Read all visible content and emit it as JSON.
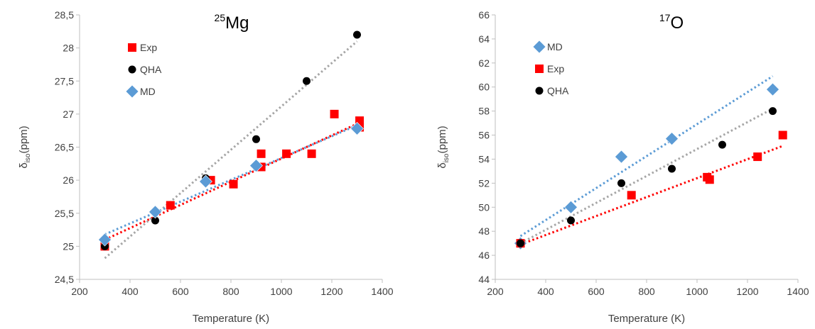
{
  "figure": {
    "panels": [
      "left",
      "right"
    ]
  },
  "chart_data": [
    {
      "type": "scatter",
      "title": {
        "sup": "25",
        "main": "Mg"
      },
      "xlabel": "Temperature (K)",
      "ylabel": {
        "main": "δ",
        "sub": "iso",
        "unit": "(ppm)"
      },
      "xlim": [
        200,
        1400
      ],
      "ylim": [
        24.5,
        28.5
      ],
      "x_ticks": [
        200,
        400,
        600,
        800,
        1000,
        1200,
        1400
      ],
      "y_ticks": [
        24.5,
        25,
        25.5,
        26,
        26.5,
        27,
        27.5,
        28,
        28.5
      ],
      "x_tick_labels": [
        "200",
        "400",
        "600",
        "800",
        "1000",
        "1200",
        "1400"
      ],
      "y_tick_labels": [
        "24,5",
        "25",
        "25,5",
        "26",
        "26,5",
        "27",
        "27,5",
        "28",
        "28,5"
      ],
      "grid": false,
      "legend_position": "top-left",
      "trendlines": "dotted linear",
      "series": [
        {
          "name": "Exp",
          "marker": "square",
          "color": "#ff0000",
          "points": [
            [
              300,
              25.0
            ],
            [
              560,
              25.62
            ],
            [
              720,
              26.0
            ],
            [
              810,
              25.94
            ],
            [
              920,
              26.4
            ],
            [
              920,
              26.2
            ],
            [
              1020,
              26.4
            ],
            [
              1120,
              26.4
            ],
            [
              1210,
              27.0
            ],
            [
              1310,
              26.9
            ],
            [
              1310,
              26.8
            ]
          ],
          "trend": [
            [
              300,
              25.1
            ],
            [
              1310,
              26.87
            ]
          ]
        },
        {
          "name": "QHA",
          "marker": "circle",
          "color": "#000000",
          "points": [
            [
              300,
              25.0
            ],
            [
              500,
              25.39
            ],
            [
              700,
              26.03
            ],
            [
              900,
              26.62
            ],
            [
              1100,
              27.5
            ],
            [
              1300,
              28.2
            ]
          ],
          "trend": [
            [
              300,
              24.82
            ],
            [
              1300,
              28.1
            ]
          ]
        },
        {
          "name": "MD",
          "marker": "diamond",
          "color": "#5b9bd5",
          "points": [
            [
              300,
              25.1
            ],
            [
              500,
              25.52
            ],
            [
              700,
              25.98
            ],
            [
              900,
              26.22
            ],
            [
              1300,
              26.78
            ]
          ],
          "trend": [
            [
              300,
              25.18
            ],
            [
              1300,
              26.83
            ]
          ]
        }
      ]
    },
    {
      "type": "scatter",
      "title": {
        "sup": "17",
        "main": "O"
      },
      "xlabel": "Temperature (K)",
      "ylabel": {
        "main": "δ",
        "sub": "iso",
        "unit": "(ppm)"
      },
      "xlim": [
        200,
        1400
      ],
      "ylim": [
        44,
        66
      ],
      "x_ticks": [
        200,
        400,
        600,
        800,
        1000,
        1200,
        1400
      ],
      "y_ticks": [
        44,
        46,
        48,
        50,
        52,
        54,
        56,
        58,
        60,
        62,
        64,
        66
      ],
      "x_tick_labels": [
        "200",
        "400",
        "600",
        "800",
        "1000",
        "1200",
        "1400"
      ],
      "y_tick_labels": [
        "44",
        "46",
        "48",
        "50",
        "52",
        "54",
        "56",
        "58",
        "60",
        "62",
        "64",
        "66"
      ],
      "grid": false,
      "legend_position": "top-left",
      "trendlines": "dotted linear",
      "series": [
        {
          "name": "MD",
          "marker": "diamond",
          "color": "#5b9bd5",
          "points": [
            [
              300,
              47.0
            ],
            [
              500,
              50.0
            ],
            [
              700,
              54.2
            ],
            [
              900,
              55.7
            ],
            [
              1300,
              59.8
            ]
          ],
          "trend": [
            [
              300,
              47.6
            ],
            [
              1300,
              60.9
            ]
          ]
        },
        {
          "name": "Exp",
          "marker": "square",
          "color": "#ff0000",
          "points": [
            [
              300,
              47.0
            ],
            [
              740,
              51.0
            ],
            [
              1040,
              52.5
            ],
            [
              1050,
              52.3
            ],
            [
              1240,
              54.2
            ],
            [
              1340,
              56.0
            ]
          ],
          "trend": [
            [
              300,
              46.9
            ],
            [
              1340,
              55.1
            ]
          ]
        },
        {
          "name": "QHA",
          "marker": "circle",
          "color": "#000000",
          "points": [
            [
              300,
              47.0
            ],
            [
              500,
              48.9
            ],
            [
              700,
              52.0
            ],
            [
              900,
              53.2
            ],
            [
              1100,
              55.2
            ],
            [
              1300,
              58.0
            ]
          ],
          "trend": [
            [
              300,
              47.0
            ],
            [
              1300,
              58.2
            ]
          ]
        }
      ]
    }
  ]
}
